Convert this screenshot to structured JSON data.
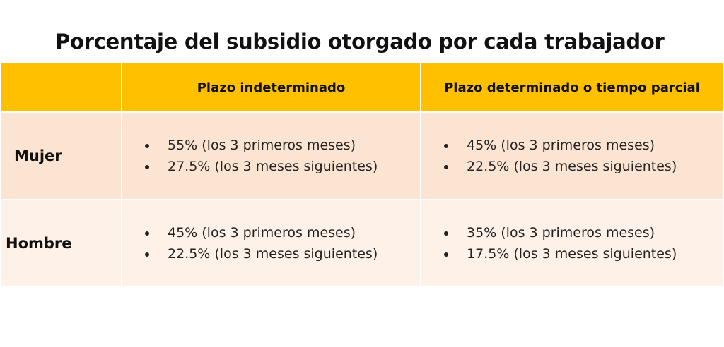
{
  "title": "Porcentaje del subsidio otorgado por cada trabajador",
  "headers": [
    "",
    "Plazo indeterminado",
    "Plazo determinado o tiempo parcial"
  ],
  "rows": [
    {
      "label": "Mujer",
      "cells": [
        [
          "55% (los 3 primeros meses)",
          "27.5% (los 3 meses siguientes)"
        ],
        [
          "45% (los 3 primeros meses)",
          "22.5% (los 3 meses siguientes)"
        ]
      ]
    },
    {
      "label": "Hombre",
      "cells": [
        [
          "45% (los 3 primeros meses)",
          "22.5% (los 3 meses siguientes)"
        ],
        [
          "35% (los 3 primeros meses)",
          "17.5% (los 3 meses siguientes)"
        ]
      ]
    }
  ]
}
